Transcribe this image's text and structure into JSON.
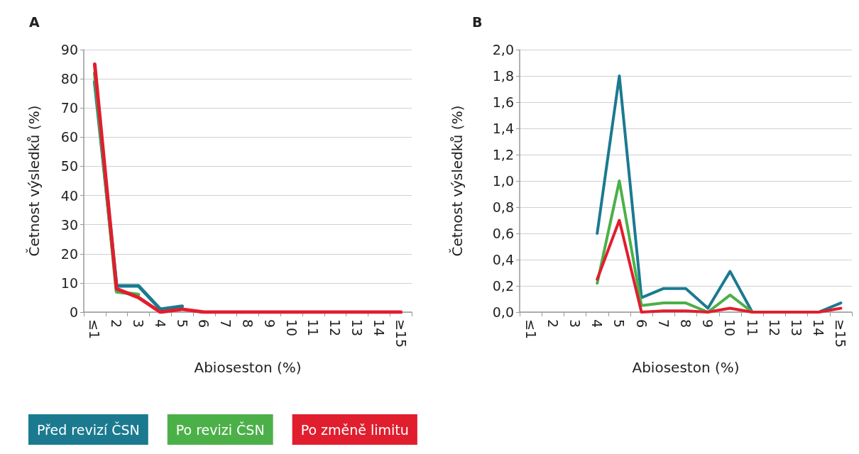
{
  "chart_data": [
    {
      "type": "line",
      "title": "A",
      "xlabel": "Abioseston (%)",
      "ylabel": "Četnost výsledků (%)",
      "categories": [
        "≤1",
        "2",
        "3",
        "4",
        "5",
        "6",
        "7",
        "8",
        "9",
        "10",
        "11",
        "12",
        "13",
        "14",
        "≥15"
      ],
      "series": [
        {
          "name": "Před revizí ČSN",
          "color": "#1b7a90",
          "values": [
            79,
            9,
            9,
            1,
            2,
            null,
            null,
            null,
            null,
            null,
            null,
            null,
            null,
            null,
            null
          ]
        },
        {
          "name": "Po revizi ČSN",
          "color": "#4cb049",
          "values": [
            82,
            7,
            6,
            null,
            null,
            null,
            null,
            null,
            null,
            null,
            null,
            null,
            null,
            null,
            null
          ]
        },
        {
          "name": "Po změně limitu",
          "color": "#e01e2e",
          "values": [
            85,
            8,
            5,
            0,
            1,
            0,
            0,
            0,
            0,
            0,
            0,
            0,
            0,
            0,
            0
          ]
        }
      ],
      "ylim": [
        0,
        90
      ],
      "yticks": [
        0,
        10,
        20,
        30,
        40,
        50,
        60,
        70,
        80,
        90
      ],
      "grid": "y",
      "legend": "bottom",
      "marker": "none",
      "line_style": "solid"
    },
    {
      "type": "line",
      "title": "B",
      "xlabel": "Abioseston (%)",
      "ylabel": "Četnost výsledků (%)",
      "categories": [
        "≤1",
        "2",
        "3",
        "4",
        "5",
        "6",
        "7",
        "8",
        "9",
        "10",
        "11",
        "12",
        "13",
        "14",
        "≥15"
      ],
      "series": [
        {
          "color": "#1b7a90",
          "values": [
            null,
            null,
            null,
            0.6,
            1.8,
            0.11,
            0.18,
            0.18,
            0.03,
            0.31,
            0,
            0,
            0,
            0,
            0.07
          ]
        },
        {
          "color": "#4cb049",
          "values": [
            null,
            null,
            null,
            0.22,
            1.0,
            0.05,
            0.07,
            0.07,
            0,
            0.13,
            0,
            null,
            null,
            null,
            null
          ]
        },
        {
          "color": "#e01e2e",
          "values": [
            null,
            null,
            null,
            0.25,
            0.7,
            0,
            0.01,
            0.01,
            0,
            0.03,
            0,
            0,
            0,
            0,
            0.03
          ]
        }
      ],
      "ylim": [
        0,
        2
      ],
      "yticks": [
        {
          "value": 0,
          "label": "0,0"
        },
        {
          "value": 0.2,
          "label": "0,2"
        },
        {
          "value": 0.4,
          "label": "0,4"
        },
        {
          "value": 0.6,
          "label": "0,6"
        },
        {
          "value": 0.8,
          "label": "0,8"
        },
        {
          "value": 1,
          "label": "1,0"
        },
        {
          "value": 1.2,
          "label": "1,2"
        },
        {
          "value": 1.4,
          "label": "1,4"
        },
        {
          "value": 1.6,
          "label": "1,6"
        },
        {
          "value": 1.8,
          "label": "1,8"
        },
        {
          "value": 2,
          "label": "2,0"
        }
      ],
      "grid": "y",
      "marker": "none",
      "line_style": "solid"
    }
  ]
}
